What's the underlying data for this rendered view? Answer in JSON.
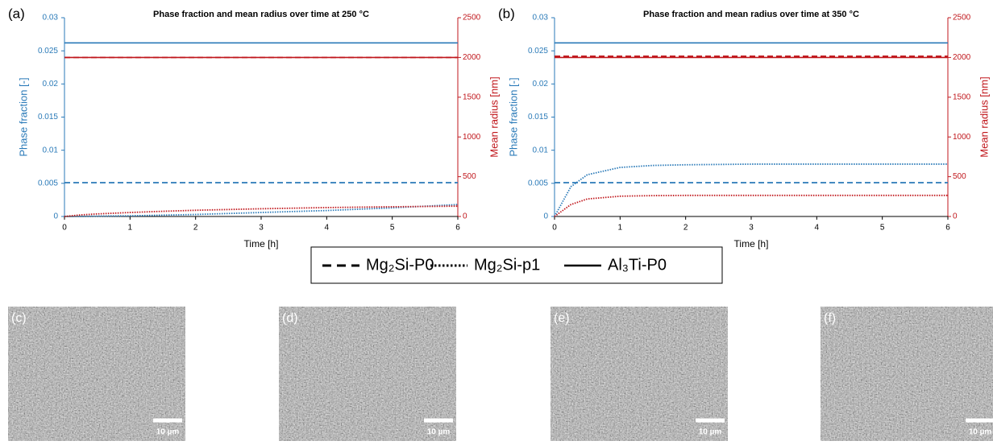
{
  "chart_data": [
    {
      "type": "line",
      "panel_label": "(a)",
      "title": "Phase fraction and mean radius over time at 250 °C",
      "xlabel": "Time [h]",
      "ylabel": "Phase fraction [-]",
      "y2label": "Mean radius [nm]",
      "x": [
        0,
        0.25,
        0.5,
        1,
        1.5,
        2,
        3,
        4,
        5,
        6
      ],
      "xlim": [
        0,
        6
      ],
      "xticks": [
        0,
        1,
        2,
        3,
        4,
        5,
        6
      ],
      "ylim": [
        0,
        0.03
      ],
      "yticks": [
        0,
        0.005,
        0.01,
        0.015,
        0.02,
        0.025,
        0.03
      ],
      "y2lim": [
        0,
        2500
      ],
      "y2ticks": [
        0,
        500,
        1000,
        1500,
        2000,
        2500
      ],
      "ycolor": "#2a7ab8",
      "y2color": "#c0171c",
      "series": [
        {
          "style": "dashed",
          "color": "#2a7ab8",
          "values": [
            0.0051,
            0.0051,
            0.0051,
            0.0051,
            0.0051,
            0.0051,
            0.0051,
            0.0051,
            0.0051,
            0.0051
          ]
        },
        {
          "style": "dotted",
          "color": "#2a7ab8",
          "values": [
            0,
            2e-05,
            5e-05,
            0.0001,
            0.0002,
            0.0003,
            0.0006,
            0.0009,
            0.0013,
            0.0018
          ]
        },
        {
          "style": "solid",
          "color": "#2a7ab8",
          "values": [
            0.0262,
            0.0262,
            0.0262,
            0.0262,
            0.0262,
            0.0262,
            0.0262,
            0.0262,
            0.0262,
            0.0262
          ]
        },
        {
          "style": "dashed",
          "color": "#c0171c",
          "axis": "y2",
          "values": [
            2000,
            2000,
            2000,
            2000,
            2000,
            2000,
            2000,
            2000,
            2000,
            2000
          ]
        },
        {
          "style": "dotted",
          "color": "#c0171c",
          "axis": "y2",
          "values": [
            0,
            20,
            32,
            50,
            65,
            78,
            97,
            112,
            122,
            130
          ]
        },
        {
          "style": "solid",
          "color": "#c0171c",
          "axis": "y2",
          "values": [
            2000,
            2000,
            2000,
            2000,
            2000,
            2000,
            2000,
            2000,
            2000,
            2000
          ]
        }
      ]
    },
    {
      "type": "line",
      "panel_label": "(b)",
      "title": "Phase fraction and mean radius over time at 350 °C",
      "xlabel": "Time [h]",
      "ylabel": "Phase fraction [-]",
      "y2label": "Mean radius [nm]",
      "x": [
        0,
        0.25,
        0.5,
        1,
        1.5,
        2,
        3,
        4,
        5,
        6
      ],
      "xlim": [
        0,
        6
      ],
      "xticks": [
        0,
        1,
        2,
        3,
        4,
        5,
        6
      ],
      "ylim": [
        0,
        0.03
      ],
      "yticks": [
        0,
        0.005,
        0.01,
        0.015,
        0.02,
        0.025,
        0.03
      ],
      "y2lim": [
        0,
        2500
      ],
      "y2ticks": [
        0,
        500,
        1000,
        1500,
        2000,
        2500
      ],
      "ycolor": "#2a7ab8",
      "y2color": "#c0171c",
      "series": [
        {
          "style": "dashed",
          "color": "#2a7ab8",
          "values": [
            0.0051,
            0.0051,
            0.0051,
            0.0051,
            0.0051,
            0.0051,
            0.0051,
            0.0051,
            0.0051,
            0.0051
          ]
        },
        {
          "style": "dotted",
          "color": "#2a7ab8",
          "values": [
            0,
            0.0045,
            0.0063,
            0.0074,
            0.0077,
            0.0078,
            0.0079,
            0.0079,
            0.0079,
            0.0079
          ]
        },
        {
          "style": "solid",
          "color": "#2a7ab8",
          "values": [
            0.0262,
            0.0262,
            0.0262,
            0.0262,
            0.0262,
            0.0262,
            0.0262,
            0.0262,
            0.0262,
            0.0262
          ]
        },
        {
          "style": "dashed",
          "color": "#c0171c",
          "axis": "y2",
          "values": [
            2015,
            2015,
            2015,
            2015,
            2015,
            2015,
            2015,
            2015,
            2015,
            2015
          ]
        },
        {
          "style": "dotted",
          "color": "#c0171c",
          "axis": "y2",
          "values": [
            0,
            150,
            220,
            255,
            262,
            265,
            265,
            265,
            265,
            265
          ]
        },
        {
          "style": "solid",
          "color": "#c0171c",
          "axis": "y2",
          "values": [
            2000,
            2000,
            2000,
            2000,
            2000,
            2000,
            2000,
            2000,
            2000,
            2000
          ]
        }
      ]
    }
  ],
  "legend": [
    {
      "label": "Mg₂Si-P0",
      "style": "dashed"
    },
    {
      "label": "Mg₂Si-p1",
      "style": "dotted"
    },
    {
      "label": "Al₃Ti-P0",
      "style": "solid"
    }
  ],
  "micrographs": [
    {
      "label": "(c)",
      "scale": "10 µm"
    },
    {
      "label": "(d)",
      "scale": "10 µm"
    },
    {
      "label": "(e)",
      "scale": "10 µm"
    },
    {
      "label": "(f)",
      "scale": "10 µm"
    }
  ]
}
